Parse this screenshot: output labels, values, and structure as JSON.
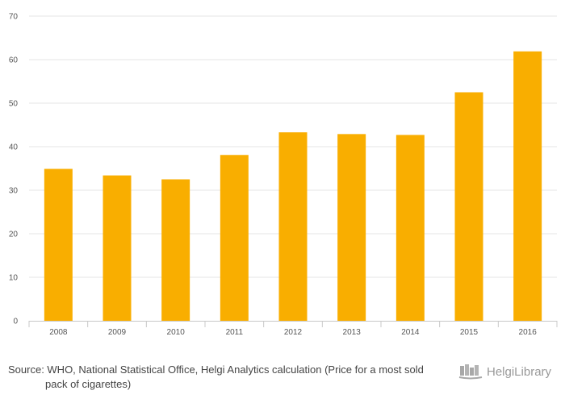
{
  "chart_data": {
    "type": "bar",
    "categories": [
      "2008",
      "2009",
      "2010",
      "2011",
      "2012",
      "2013",
      "2014",
      "2015",
      "2016"
    ],
    "values": [
      34.9,
      33.4,
      32.5,
      38.1,
      43.3,
      42.9,
      42.7,
      52.5,
      61.9
    ],
    "ylim": [
      0,
      70
    ],
    "yticks": [
      "0",
      "10",
      "20",
      "30",
      "40",
      "50",
      "60",
      "70"
    ],
    "grid": true,
    "colors": {
      "bar": "#F9AE00",
      "grid": "#e6e6e6",
      "axis": "#c8c8c8",
      "text": "#555555"
    }
  },
  "footer": {
    "source": "Source: WHO, National Statistical Office, Helgi Analytics calculation (Price for a most sold pack of cigarettes)",
    "brand": "HelgiLibrary",
    "brand_icon": "helgi-library-logo"
  }
}
